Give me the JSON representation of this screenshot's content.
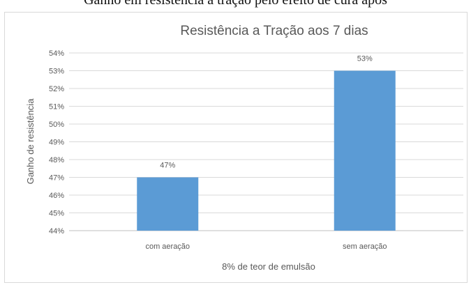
{
  "page_caption": "Ganho em resistência à tração pelo efeito de cura após",
  "chart_data": {
    "type": "bar",
    "title": "Resistência a Tração aos 7 dias",
    "xlabel": "8% de teor de emulsão",
    "ylabel": "Ganho de resistência",
    "categories": [
      "com aeração",
      "sem aeração"
    ],
    "values": [
      47,
      53
    ],
    "data_labels": [
      "47%",
      "53%"
    ],
    "ylim": [
      44,
      54
    ],
    "yticks": [
      "44%",
      "45%",
      "46%",
      "47%",
      "48%",
      "49%",
      "50%",
      "51%",
      "52%",
      "53%",
      "54%"
    ],
    "grid": true,
    "legend": "none",
    "bar_color": "#5b9bd5",
    "grid_color": "#d9d9d9",
    "text_color": "#595959"
  }
}
